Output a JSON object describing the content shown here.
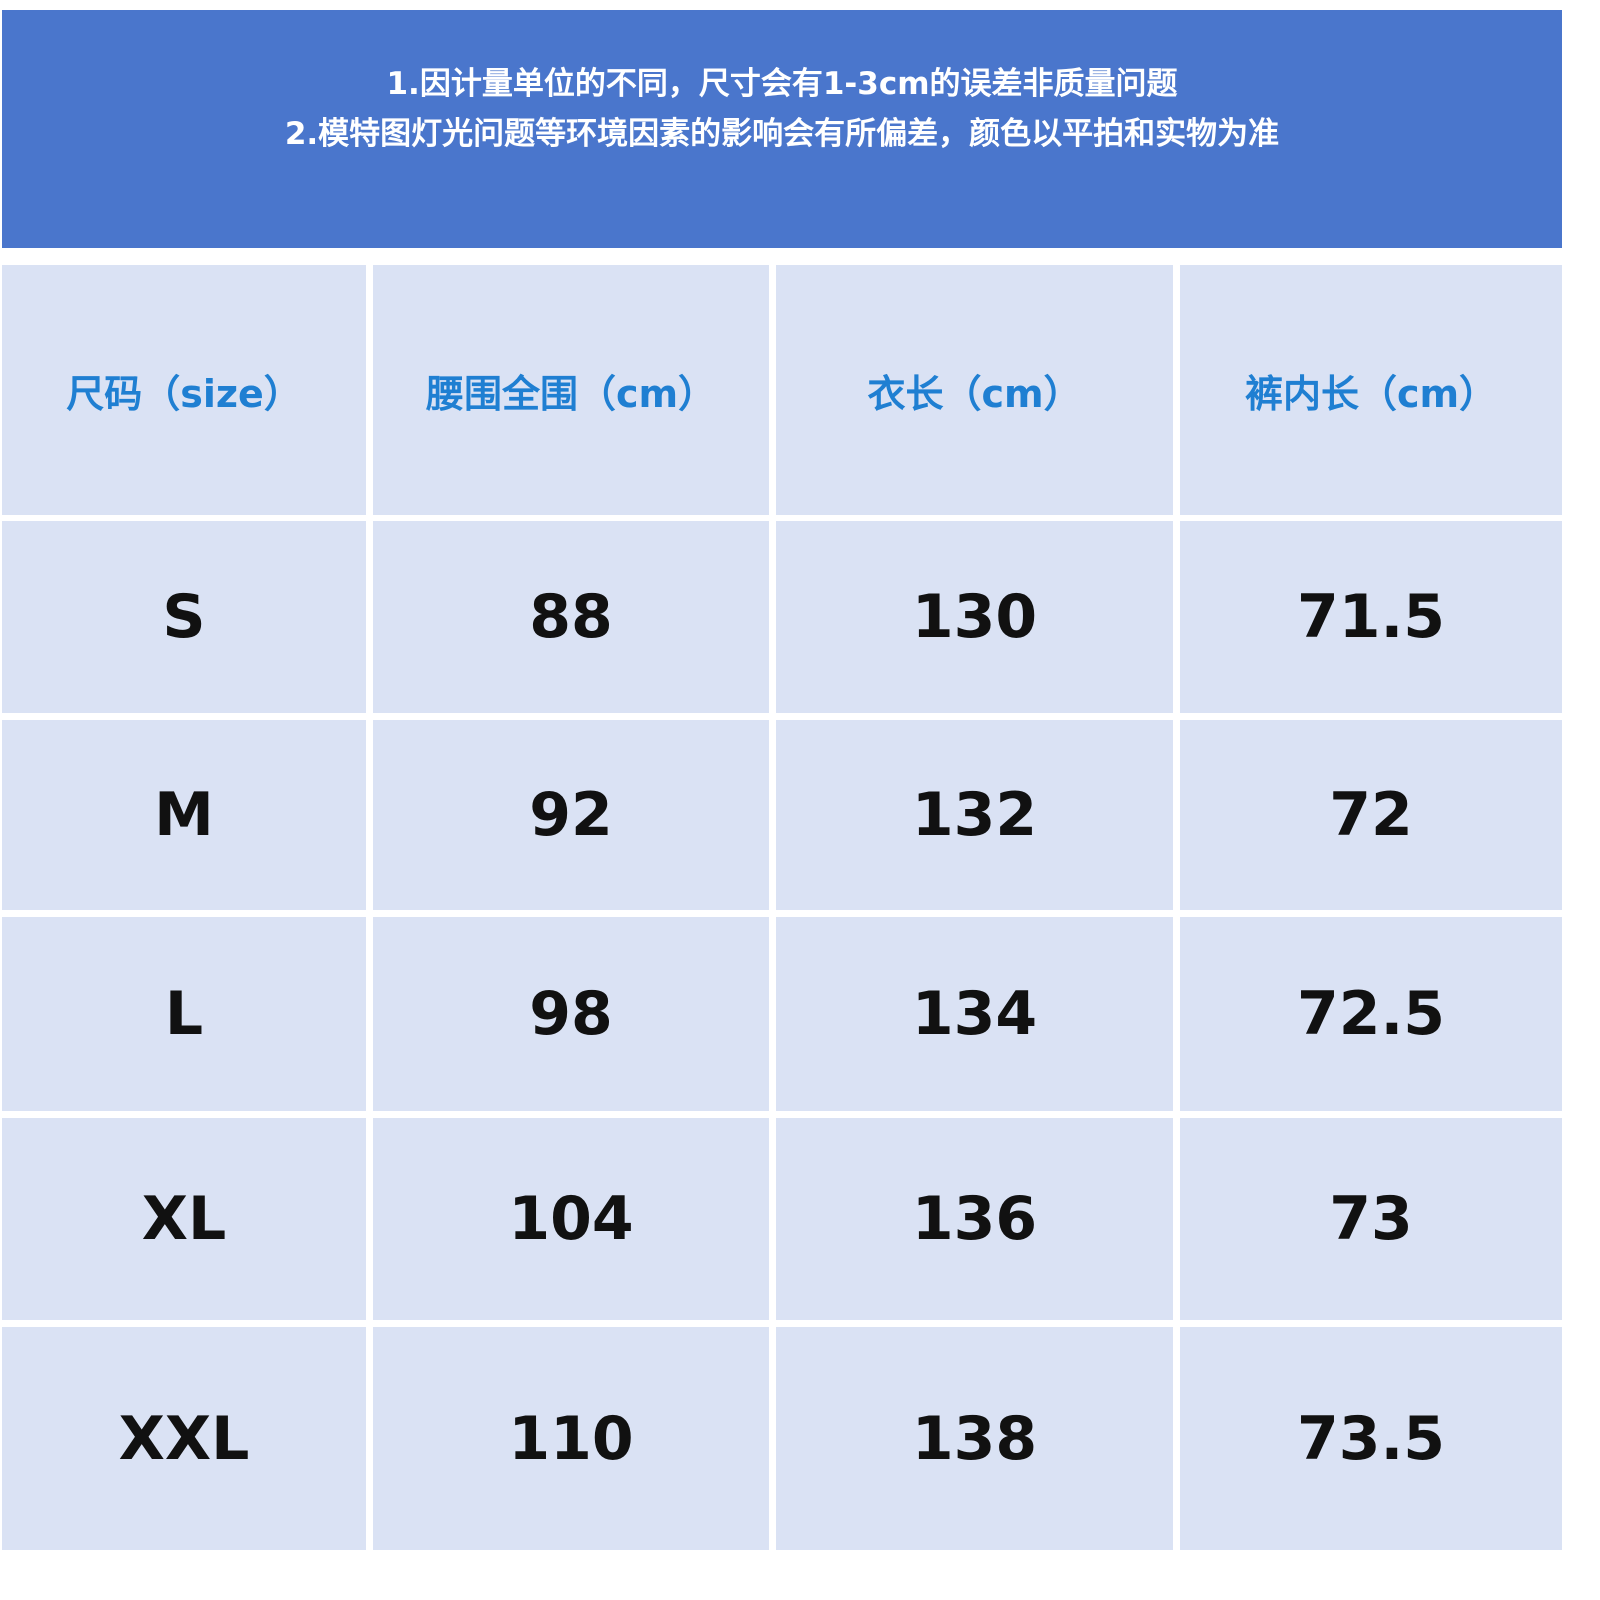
{
  "notice": {
    "line1": "1.因计量单位的不同，尺寸会有1-3cm的误差非质量问题",
    "line2": "2.模特图灯光问题等环境因素的影响会有所偏差，颜色以平拍和实物为准",
    "background": "#4a76cc"
  },
  "table": {
    "headers": [
      "尺码（size）",
      "腰围全围（cm）",
      "衣长（cm）",
      "裤内长（cm）"
    ],
    "rows": [
      [
        "S",
        "88",
        "130",
        "71.5"
      ],
      [
        "M",
        "92",
        "132",
        "72"
      ],
      [
        "L",
        "98",
        "134",
        "72.5"
      ],
      [
        "XL",
        "104",
        "136",
        "73"
      ],
      [
        "XXL",
        "110",
        "138",
        "73.5"
      ]
    ],
    "header_color": "#1f7fd2",
    "cell_background": "#dae2f4"
  }
}
